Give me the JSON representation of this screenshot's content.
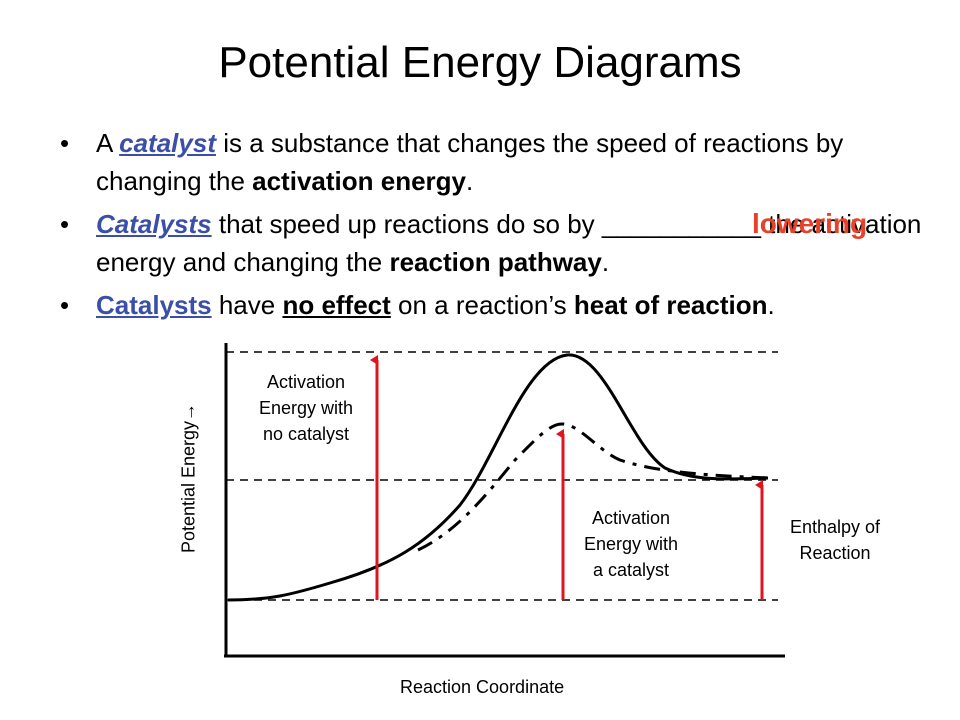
{
  "title": "Potential Energy Diagrams",
  "bullets": [
    {
      "p1": "A ",
      "term": "catalyst",
      "p2": " is a substance that changes the speed of reactions by changing the ",
      "bold": "activation energy",
      "p3": "."
    },
    {
      "term": "Catalysts",
      "p1": " that speed up reactions do so by ",
      "blank": "___________",
      "p2": " the activation energy and changing the ",
      "bold": "reaction pathway",
      "p3": "."
    },
    {
      "term": "Catalysts",
      "p1": " have ",
      "underline": "no effect",
      "p2": " on a reaction’s ",
      "bold": "heat of reaction",
      "p3": "."
    }
  ],
  "answer": "lowering",
  "diagram": {
    "y_axis_label": "Potential Energy→",
    "x_axis_label": "Reaction Coordinate",
    "label_no_catalyst": [
      "Activation",
      "Energy with",
      "no catalyst"
    ],
    "label_catalyst": [
      "Activation",
      "Energy with",
      "a catalyst"
    ],
    "label_enthalpy": [
      "Enthalpy of",
      "Reaction"
    ],
    "arrow_color": "#e0141e",
    "answer_color": "#e8412a",
    "term_color": "#3b4fa8"
  }
}
